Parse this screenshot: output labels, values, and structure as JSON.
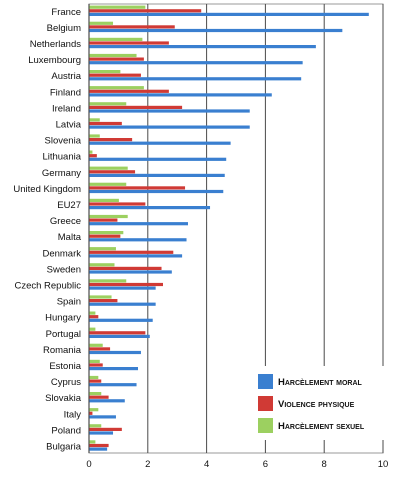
{
  "chart_data": {
    "type": "bar",
    "orientation": "horizontal",
    "categories": [
      "France",
      "Belgium",
      "Netherlands",
      "Luxembourg",
      "Austria",
      "Finland",
      "Ireland",
      "Latvia",
      "Slovenia",
      "Lithuania",
      "Germany",
      "United Kingdom",
      "EU27",
      "Greece",
      "Malta",
      "Denmark",
      "Sweden",
      "Czech Republic",
      "Spain",
      "Hungary",
      "Portugal",
      "Romania",
      "Estonia",
      "Cyprus",
      "Slovakia",
      "Italy",
      "Poland",
      "Bulgaria"
    ],
    "series": [
      {
        "name": "Harcèlement moral",
        "color": "#3a7fd0",
        "values": [
          9.5,
          8.6,
          7.7,
          7.25,
          7.2,
          6.2,
          5.45,
          5.45,
          4.8,
          4.65,
          4.6,
          4.55,
          4.1,
          3.35,
          3.3,
          3.15,
          2.8,
          2.25,
          2.25,
          2.15,
          2.05,
          1.75,
          1.65,
          1.6,
          1.2,
          0.9,
          0.8,
          0.6
        ]
      },
      {
        "name": "Violence physique",
        "color": "#d03a35",
        "values": [
          3.8,
          2.9,
          2.7,
          1.85,
          1.75,
          2.7,
          3.15,
          1.1,
          1.45,
          0.25,
          1.55,
          3.25,
          1.9,
          0.95,
          1.05,
          2.85,
          2.45,
          2.5,
          0.95,
          0.3,
          1.9,
          0.7,
          0.45,
          0.4,
          0.65,
          0.1,
          1.1,
          0.65
        ]
      },
      {
        "name": "Harcèlement sexuel",
        "color": "#9cd060",
        "values": [
          1.9,
          0.8,
          1.8,
          1.6,
          1.05,
          1.85,
          1.25,
          0.35,
          0.35,
          0.1,
          1.3,
          1.25,
          1.0,
          1.3,
          1.15,
          0.9,
          0.85,
          1.25,
          0.75,
          0.2,
          0.2,
          0.45,
          0.35,
          0.3,
          0.4,
          0.3,
          0.4,
          0.2
        ]
      }
    ],
    "xlim": [
      0,
      10
    ],
    "xticks": [
      "0",
      "2",
      "4",
      "6",
      "8",
      "10"
    ],
    "grid": "vertical",
    "legend": "bottom-right"
  }
}
